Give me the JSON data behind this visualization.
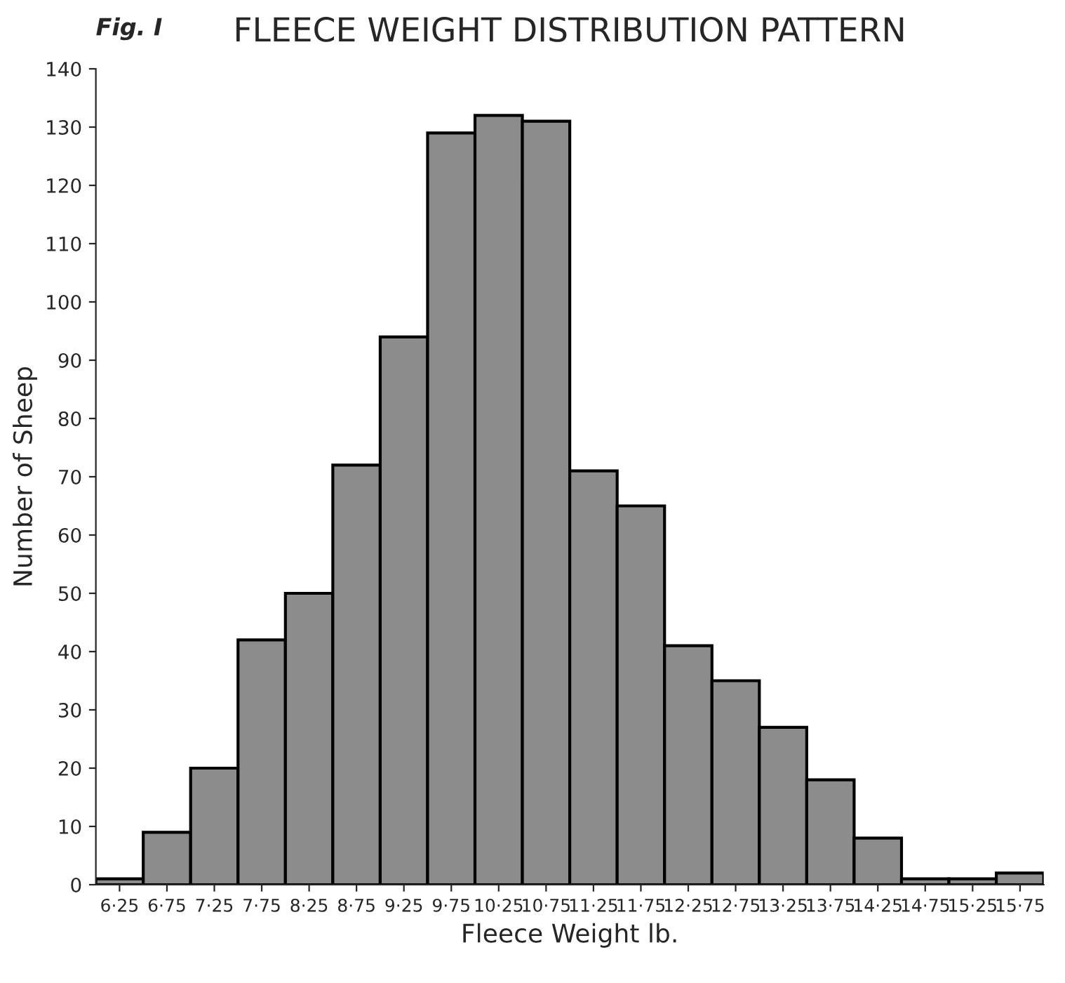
{
  "chart_data": {
    "type": "bar",
    "title": "FLEECE WEIGHT DISTRIBUTION PATTERN",
    "xlabel": "Fleece Weight lb.",
    "ylabel": "Number of Sheep",
    "annotations": [
      "Fig. I"
    ],
    "categories": [
      "6·25",
      "6·75",
      "7·25",
      "7·75",
      "8·25",
      "8·75",
      "9·25",
      "9·75",
      "10·25",
      "10·75",
      "11·25",
      "11·75",
      "12·25",
      "12·75",
      "13·25",
      "13·75",
      "14·25",
      "14·75",
      "15·25",
      "15·75"
    ],
    "values": [
      1,
      9,
      20,
      42,
      50,
      72,
      94,
      129,
      132,
      131,
      71,
      65,
      41,
      35,
      27,
      18,
      8,
      1,
      1,
      2
    ],
    "color": "#8c8c8c",
    "ylim": [
      0,
      140
    ],
    "yticks": [
      0,
      10,
      20,
      30,
      40,
      50,
      60,
      70,
      80,
      90,
      100,
      110,
      120,
      130,
      140
    ],
    "grid": false,
    "legend": false
  }
}
